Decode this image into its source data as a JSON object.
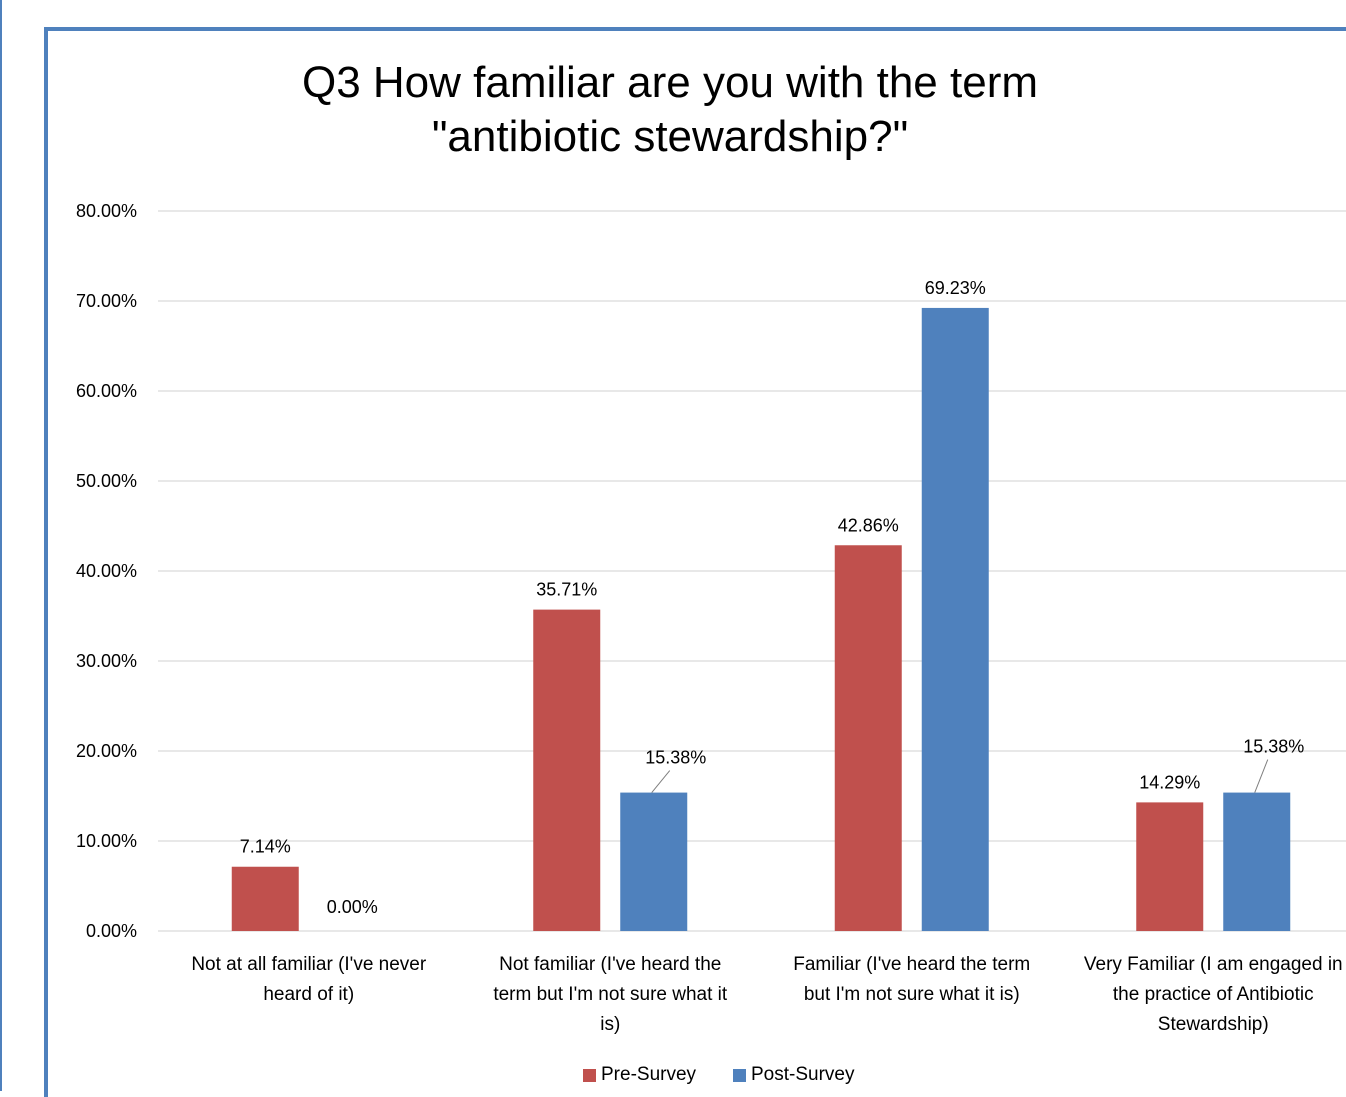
{
  "chart_data": {
    "type": "bar",
    "title": "Q3 How familiar are you with the term \"antibiotic stewardship?\"",
    "title_lines": [
      "Q3 How familiar are you with the term",
      "\"antibiotic stewardship?\""
    ],
    "categories": [
      "Not at all familiar (I've never heard of it)",
      "Not familiar (I've heard the term but I'm not sure what it is)",
      "Familiar (I've heard the term but I'm not sure what it is)",
      "Very Familiar (I am engaged in the practice of Antibiotic Stewardship)"
    ],
    "category_label_lines": [
      [
        "Not at all familiar (I've never",
        "heard of it)"
      ],
      [
        "Not familiar (I've heard the",
        "term but I'm not sure what it",
        "is)"
      ],
      [
        "Familiar (I've heard the term",
        "but I'm not sure what it is)"
      ],
      [
        "Very Familiar (I am engaged in",
        "the practice of Antibiotic",
        "Stewardship)"
      ]
    ],
    "series": [
      {
        "name": "Pre-Survey",
        "color": "#c0504d",
        "values": [
          7.14,
          35.71,
          42.86,
          14.29
        ],
        "labels": [
          "7.14%",
          "35.71%",
          "42.86%",
          "14.29%"
        ]
      },
      {
        "name": "Post-Survey",
        "color": "#4f81bd",
        "values": [
          0.0,
          15.38,
          69.23,
          15.38
        ],
        "labels": [
          "0.00%",
          "15.38%",
          "69.23%",
          "15.38%"
        ]
      }
    ],
    "ylim": [
      0,
      80
    ],
    "yticks": [
      "0.00%",
      "10.00%",
      "20.00%",
      "30.00%",
      "40.00%",
      "50.00%",
      "60.00%",
      "70.00%",
      "80.00%"
    ],
    "grid": true,
    "legend_position": "bottom"
  }
}
